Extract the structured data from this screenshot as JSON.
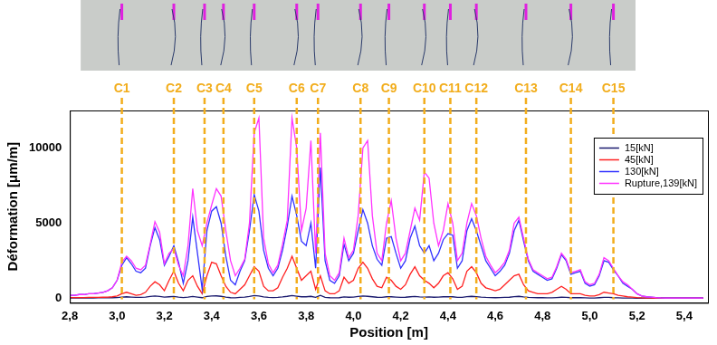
{
  "chart_data": {
    "type": "line",
    "x_label": "Position [m]",
    "y_label": "Déformation [μm/m]",
    "xlim": [
      2.8,
      5.5
    ],
    "xticks": [
      {
        "value": 2.8,
        "label": "2,8"
      },
      {
        "value": 3.0,
        "label": "3,0"
      },
      {
        "value": 3.2,
        "label": "3,2"
      },
      {
        "value": 3.4,
        "label": "3,4"
      },
      {
        "value": 3.6,
        "label": "3,6"
      },
      {
        "value": 3.8,
        "label": "3,8"
      },
      {
        "value": 4.0,
        "label": "4,0"
      },
      {
        "value": 4.2,
        "label": "4,2"
      },
      {
        "value": 4.4,
        "label": "4,4"
      },
      {
        "value": 4.6,
        "label": "4,6"
      },
      {
        "value": 4.8,
        "label": "4,8"
      },
      {
        "value": 5.0,
        "label": "5,0"
      },
      {
        "value": 5.2,
        "label": "5,2"
      },
      {
        "value": 5.4,
        "label": "5,4"
      }
    ],
    "ylim": [
      -300,
      12500
    ],
    "yticks": [
      0,
      5000,
      10000
    ],
    "grid": false,
    "legend": "upper right",
    "annotations": [
      {
        "label": "C1",
        "x": 3.02
      },
      {
        "label": "C2",
        "x": 3.24
      },
      {
        "label": "C3",
        "x": 3.37
      },
      {
        "label": "C4",
        "x": 3.45
      },
      {
        "label": "C5",
        "x": 3.58
      },
      {
        "label": "C6",
        "x": 3.76
      },
      {
        "label": "C7",
        "x": 3.85
      },
      {
        "label": "C8",
        "x": 4.03
      },
      {
        "label": "C9",
        "x": 4.15
      },
      {
        "label": "C10",
        "x": 4.3
      },
      {
        "label": "C11",
        "x": 4.41
      },
      {
        "label": "C12",
        "x": 4.52
      },
      {
        "label": "C13",
        "x": 4.73
      },
      {
        "label": "C14",
        "x": 4.92
      },
      {
        "label": "C15",
        "x": 5.1
      }
    ],
    "x": [
      2.8,
      2.82,
      2.84,
      2.86,
      2.88,
      2.9,
      2.92,
      2.94,
      2.96,
      2.98,
      3.0,
      3.02,
      3.04,
      3.06,
      3.08,
      3.1,
      3.12,
      3.14,
      3.16,
      3.18,
      3.2,
      3.22,
      3.24,
      3.26,
      3.28,
      3.3,
      3.32,
      3.34,
      3.36,
      3.38,
      3.4,
      3.42,
      3.44,
      3.46,
      3.48,
      3.5,
      3.52,
      3.54,
      3.56,
      3.58,
      3.6,
      3.62,
      3.64,
      3.66,
      3.68,
      3.7,
      3.72,
      3.74,
      3.76,
      3.78,
      3.8,
      3.82,
      3.84,
      3.86,
      3.88,
      3.9,
      3.92,
      3.94,
      3.96,
      3.98,
      4.0,
      4.02,
      4.04,
      4.06,
      4.08,
      4.1,
      4.12,
      4.14,
      4.16,
      4.18,
      4.2,
      4.22,
      4.24,
      4.26,
      4.28,
      4.3,
      4.32,
      4.34,
      4.36,
      4.38,
      4.4,
      4.42,
      4.44,
      4.46,
      4.48,
      4.5,
      4.52,
      4.54,
      4.56,
      4.58,
      4.6,
      4.62,
      4.64,
      4.66,
      4.68,
      4.7,
      4.72,
      4.74,
      4.76,
      4.78,
      4.8,
      4.82,
      4.84,
      4.86,
      4.88,
      4.9,
      4.92,
      4.94,
      4.96,
      4.98,
      5.0,
      5.02,
      5.04,
      5.06,
      5.08,
      5.1,
      5.12,
      5.14,
      5.16,
      5.18,
      5.2,
      5.22,
      5.24,
      5.26,
      5.28,
      5.3,
      5.32,
      5.34,
      5.36,
      5.38,
      5.4,
      5.42,
      5.44,
      5.46,
      5.48
    ],
    "series": [
      {
        "name": "Rupture,139[kN]",
        "color": "#ff33ff",
        "values": [
          200,
          200,
          250,
          250,
          300,
          300,
          350,
          400,
          500,
          700,
          1200,
          2400,
          2800,
          2500,
          2000,
          1900,
          2200,
          3600,
          5100,
          4400,
          2300,
          3000,
          3300,
          2200,
          1500,
          3500,
          7300,
          4500,
          3500,
          5000,
          6200,
          7300,
          6800,
          4500,
          2500,
          1500,
          2000,
          2600,
          5000,
          11000,
          12000,
          4000,
          2300,
          1700,
          2200,
          3600,
          5200,
          12000,
          10000,
          4500,
          6000,
          10500,
          3000,
          11000,
          3000,
          1500,
          1200,
          1700,
          4000,
          2700,
          3200,
          5500,
          10000,
          10500,
          5500,
          3000,
          2500,
          5000,
          6500,
          4000,
          2500,
          3000,
          4500,
          6000,
          5200,
          8400,
          8000,
          5000,
          3500,
          4500,
          6300,
          5000,
          2500,
          3000,
          5000,
          6300,
          5500,
          4000,
          2800,
          2200,
          1700,
          2000,
          2400,
          3200,
          5000,
          5400,
          4000,
          2600,
          1900,
          1700,
          1500,
          1300,
          1400,
          2100,
          3000,
          2600,
          1700,
          1800,
          1900,
          1100,
          900,
          1000,
          1600,
          2700,
          2500,
          2000,
          1500,
          1100,
          900,
          600,
          300,
          150,
          100,
          80,
          50,
          30,
          20,
          20,
          20,
          20,
          20,
          20,
          20,
          20,
          20
        ]
      },
      {
        "name": "130[kN]",
        "color": "#3333ff",
        "values": [
          200,
          200,
          250,
          250,
          300,
          300,
          350,
          400,
          500,
          700,
          1200,
          2200,
          2700,
          2300,
          1800,
          1700,
          2000,
          3500,
          4700,
          3900,
          2200,
          2800,
          3500,
          2400,
          1000,
          2500,
          5400,
          3000,
          600,
          4500,
          5800,
          6100,
          5000,
          2800,
          1200,
          900,
          1800,
          2500,
          4500,
          6900,
          5800,
          3200,
          2000,
          1500,
          2000,
          3200,
          4800,
          6800,
          5500,
          3800,
          3500,
          5000,
          2000,
          8700,
          2500,
          1200,
          1000,
          1500,
          3600,
          2500,
          3000,
          4500,
          5900,
          5000,
          3500,
          2600,
          2200,
          4000,
          4100,
          3000,
          2000,
          2500,
          4000,
          4800,
          3500,
          3000,
          3500,
          2500,
          3000,
          3900,
          4300,
          4200,
          2000,
          2500,
          4500,
          5300,
          4500,
          3500,
          2500,
          2000,
          1500,
          1800,
          2200,
          3000,
          4500,
          5200,
          3800,
          2500,
          1800,
          1600,
          1400,
          1200,
          1300,
          2000,
          2900,
          2500,
          1600,
          1700,
          1800,
          1000,
          800,
          900,
          1500,
          2500,
          2400,
          1900,
          1500,
          1000,
          800,
          600,
          300,
          150,
          100,
          80,
          50,
          30,
          20,
          20,
          20,
          20,
          20,
          20,
          20,
          20,
          20
        ]
      },
      {
        "name": "45[kN]",
        "color": "#ff2020",
        "values": [
          50,
          50,
          50,
          50,
          60,
          60,
          60,
          70,
          80,
          100,
          150,
          300,
          400,
          300,
          200,
          250,
          400,
          800,
          1100,
          900,
          500,
          1200,
          1800,
          1000,
          500,
          1200,
          1500,
          800,
          300,
          1500,
          2400,
          2300,
          1500,
          800,
          400,
          300,
          600,
          900,
          1500,
          2100,
          1800,
          800,
          500,
          500,
          700,
          1400,
          2000,
          2800,
          2000,
          1200,
          1500,
          1800,
          600,
          1500,
          500,
          300,
          300,
          500,
          1400,
          1000,
          1200,
          2000,
          2400,
          2000,
          1300,
          800,
          700,
          1400,
          1200,
          800,
          600,
          900,
          1600,
          2100,
          1500,
          1200,
          1000,
          700,
          1000,
          1500,
          1700,
          1300,
          600,
          800,
          1800,
          2100,
          1700,
          1000,
          700,
          600,
          500,
          600,
          900,
          1200,
          1500,
          1600,
          900,
          500,
          400,
          300,
          300,
          300,
          400,
          600,
          800,
          600,
          300,
          300,
          300,
          200,
          150,
          150,
          250,
          400,
          350,
          300,
          200,
          150,
          100,
          80,
          50,
          30,
          20,
          20,
          10,
          10,
          10,
          10,
          10,
          10,
          10,
          10,
          10,
          10,
          10
        ]
      },
      {
        "name": "15[kN]",
        "color": "#1a1a6e",
        "values": [
          20,
          20,
          20,
          20,
          20,
          20,
          30,
          30,
          30,
          40,
          50,
          80,
          100,
          80,
          60,
          60,
          80,
          120,
          150,
          120,
          80,
          100,
          120,
          80,
          50,
          80,
          120,
          80,
          40,
          120,
          150,
          160,
          130,
          80,
          40,
          30,
          60,
          80,
          120,
          180,
          150,
          90,
          60,
          50,
          60,
          90,
          130,
          180,
          140,
          100,
          100,
          130,
          60,
          200,
          60,
          40,
          30,
          40,
          90,
          70,
          80,
          120,
          150,
          130,
          100,
          70,
          60,
          100,
          100,
          80,
          60,
          70,
          100,
          120,
          90,
          80,
          90,
          70,
          80,
          100,
          110,
          100,
          60,
          60,
          110,
          130,
          110,
          80,
          60,
          50,
          40,
          50,
          60,
          70,
          110,
          130,
          90,
          60,
          50,
          40,
          40,
          30,
          30,
          50,
          70,
          60,
          40,
          40,
          40,
          30,
          20,
          20,
          40,
          60,
          60,
          40,
          30,
          20,
          20,
          20,
          10,
          10,
          10,
          10,
          10,
          10,
          10,
          10,
          10,
          10,
          10,
          10,
          10,
          10,
          10
        ]
      }
    ]
  }
}
